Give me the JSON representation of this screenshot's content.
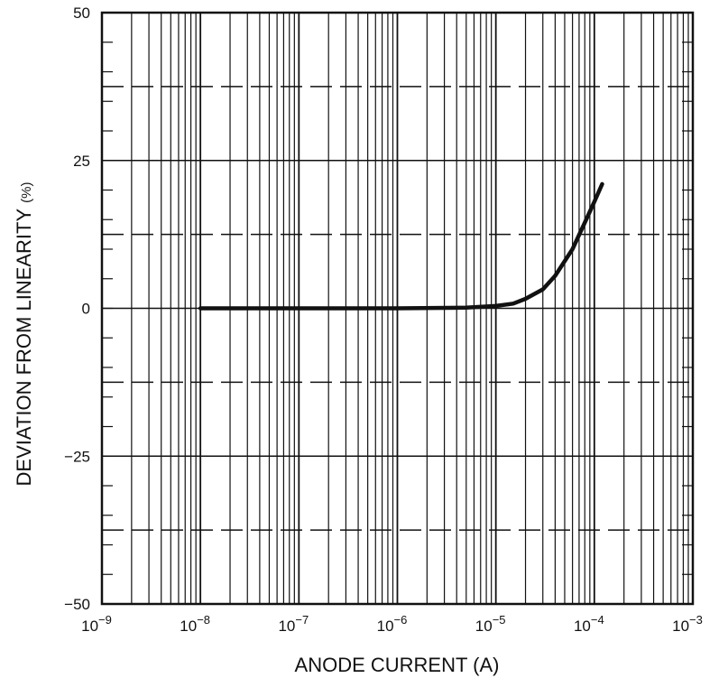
{
  "chart_data": {
    "type": "line",
    "title": "",
    "xlabel": "ANODE CURRENT (A)",
    "ylabel": "DEVIATION FROM LINEARITY",
    "ylabel_unit": "(%)",
    "x_scale": "log",
    "xlim": [
      1e-09,
      0.001
    ],
    "ylim": [
      -50,
      50
    ],
    "x_ticks": [
      {
        "value": 1e-09,
        "base": "10",
        "exp": "−9"
      },
      {
        "value": 1e-08,
        "base": "10",
        "exp": "−8"
      },
      {
        "value": 1e-07,
        "base": "10",
        "exp": "−7"
      },
      {
        "value": 1e-06,
        "base": "10",
        "exp": "−6"
      },
      {
        "value": 1e-05,
        "base": "10",
        "exp": "−5"
      },
      {
        "value": 0.0001,
        "base": "10",
        "exp": "−4"
      },
      {
        "value": 0.001,
        "base": "10",
        "exp": "−3"
      }
    ],
    "y_ticks": [
      {
        "value": 50,
        "label": "50"
      },
      {
        "value": 25,
        "label": "25"
      },
      {
        "value": 0,
        "label": "0"
      },
      {
        "value": -25,
        "label": "−25"
      },
      {
        "value": -50,
        "label": "−50"
      }
    ],
    "y_minor_dashed": [
      37.5,
      12.5,
      -12.5,
      -37.5
    ],
    "grid": true,
    "series": [
      {
        "color": "#111111",
        "points": [
          [
            1e-08,
            0
          ],
          [
            1e-07,
            0
          ],
          [
            1e-06,
            0
          ],
          [
            5e-06,
            0.1
          ],
          [
            1e-05,
            0.4
          ],
          [
            1.5e-05,
            0.8
          ],
          [
            2e-05,
            1.6
          ],
          [
            3e-05,
            3.2
          ],
          [
            4e-05,
            5.5
          ],
          [
            6e-05,
            10
          ],
          [
            8e-05,
            14.5
          ],
          [
            0.0001,
            18
          ],
          [
            0.00012,
            21
          ]
        ]
      }
    ]
  }
}
